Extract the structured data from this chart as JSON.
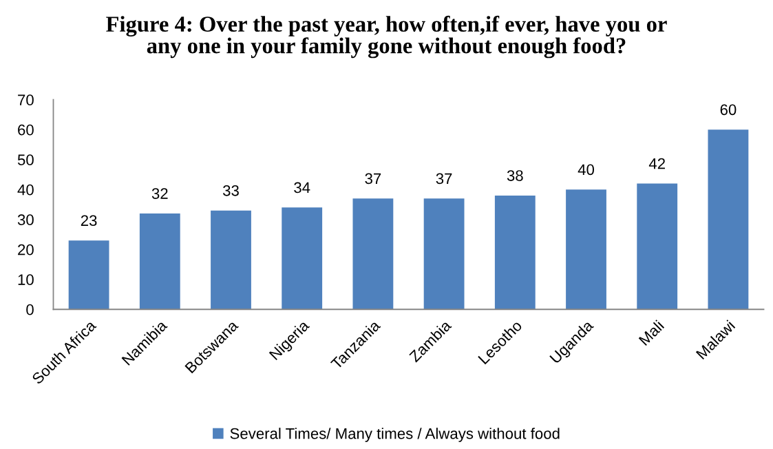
{
  "chart_data": {
    "type": "bar",
    "title": "Figure 4: Over the past year, how often,if ever, have you or\nany one in your family gone without enough food?",
    "categories": [
      "South Africa",
      "Namibia",
      "Botswana",
      "Nigeria",
      "Tanzania",
      "Zambia",
      "Lesotho",
      "Uganda",
      "Mali",
      "Malawi"
    ],
    "series": [
      {
        "name": "Several Times/ Many times / Always without food",
        "color": "#4f81bd",
        "values": [
          23,
          32,
          33,
          34,
          37,
          37,
          38,
          40,
          42,
          60
        ]
      }
    ],
    "ylim": [
      0,
      70
    ],
    "yticks": [
      0,
      10,
      20,
      30,
      40,
      50,
      60,
      70
    ],
    "grid": false,
    "legend": "bottom",
    "data_labels": true
  }
}
